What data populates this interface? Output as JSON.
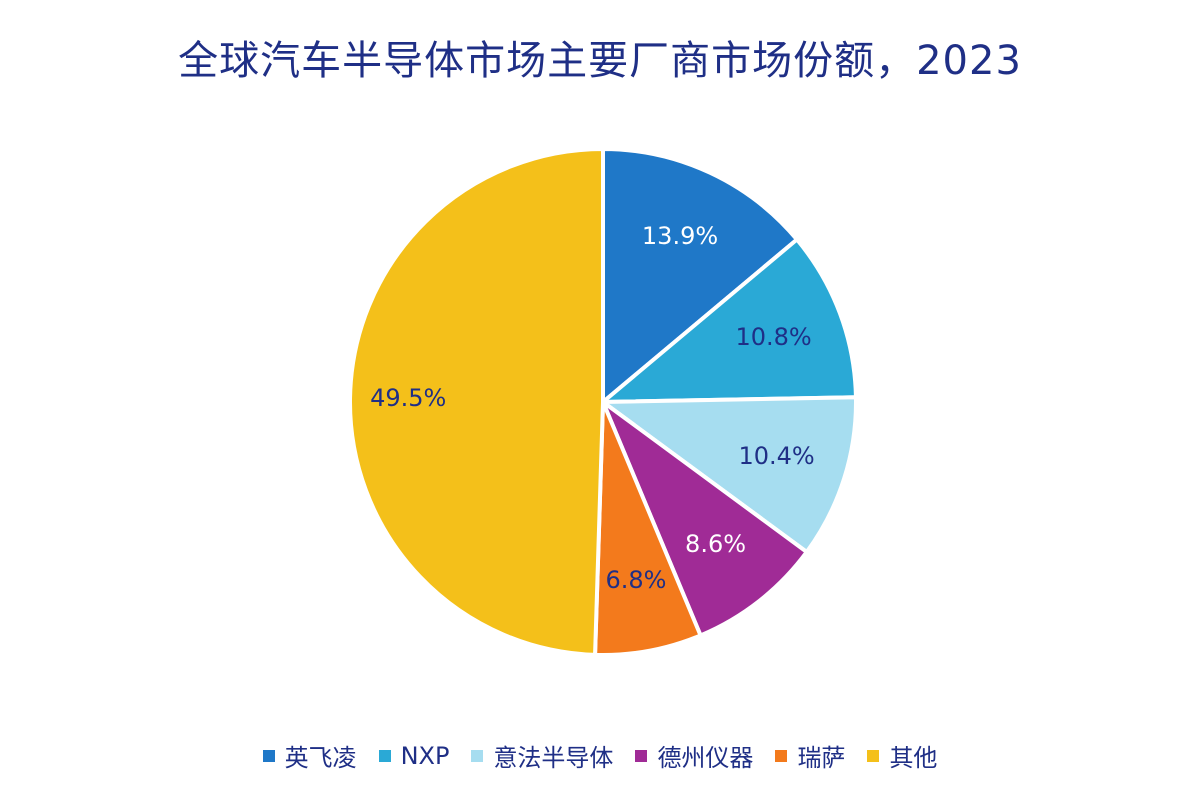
{
  "chart_data": {
    "type": "pie",
    "title": "全球汽车半导体市场主要厂商市场份额，2023",
    "legend_position": "bottom",
    "slices": [
      {
        "label": "英飞凌",
        "value": 13.9,
        "display": "13.9%",
        "color": "#1f78c8",
        "label_color": "#ffffff"
      },
      {
        "label": "NXP",
        "value": 10.8,
        "display": "10.8%",
        "color": "#2aa9d6",
        "label_color": "#1f2f86"
      },
      {
        "label": "意法半导体",
        "value": 10.4,
        "display": "10.4%",
        "color": "#a6ddf0",
        "label_color": "#1f2f86"
      },
      {
        "label": "德州仪器",
        "value": 8.6,
        "display": "8.6%",
        "color": "#a02b96",
        "label_color": "#ffffff"
      },
      {
        "label": "瑞萨",
        "value": 6.8,
        "display": "6.8%",
        "color": "#f37a1c",
        "label_color": "#1f2f86"
      },
      {
        "label": "其他",
        "value": 49.5,
        "display": "49.5%",
        "color": "#f4c01a",
        "label_color": "#1f2f86"
      }
    ]
  }
}
